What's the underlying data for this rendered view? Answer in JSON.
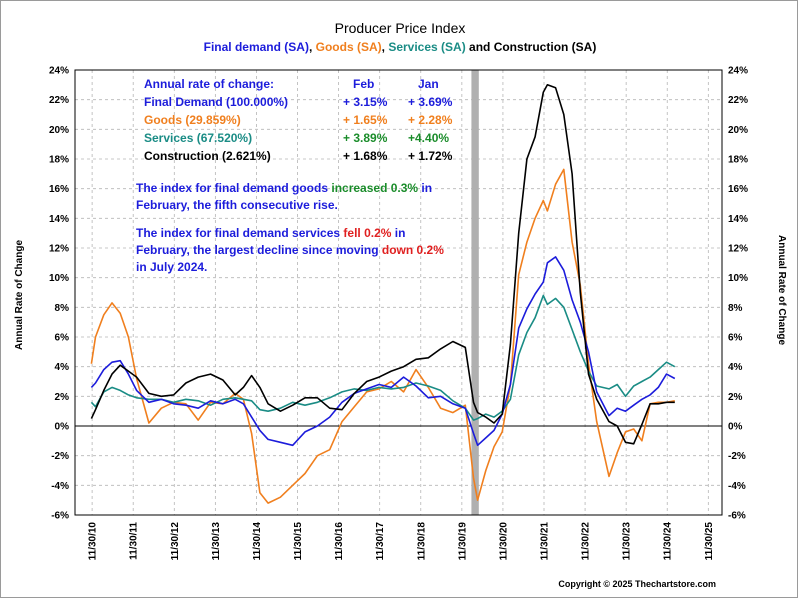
{
  "chart_data": {
    "type": "line",
    "title": "Producer Price Index",
    "subtitle": [
      {
        "text": "Final demand (SA)",
        "color": "#1c1cdb"
      },
      {
        "text": ", ",
        "color": "#000000"
      },
      {
        "text": "Goods (SA)",
        "color": "#f07f1e"
      },
      {
        "text": ", ",
        "color": "#000000"
      },
      {
        "text": "Services (SA)",
        "color": "#1a8c85"
      },
      {
        "text": " and Construction (SA)",
        "color": "#000000"
      }
    ],
    "ylabel_left": "Annual Rate of Change",
    "ylabel_right": "Annual Rate of Change",
    "ylim": [
      -6,
      24
    ],
    "yticks": [
      -6,
      -4,
      -2,
      0,
      2,
      4,
      6,
      8,
      10,
      12,
      14,
      16,
      18,
      20,
      22,
      24
    ],
    "ytick_labels": [
      "-6%",
      "-4%",
      "-2%",
      "0%",
      "2%",
      "4%",
      "6%",
      "8%",
      "10%",
      "12%",
      "14%",
      "16%",
      "18%",
      "20%",
      "22%",
      "24%"
    ],
    "xlim": [
      2010.5,
      2026.25
    ],
    "xticks": [
      2010.917,
      2011.917,
      2012.917,
      2013.917,
      2014.917,
      2015.917,
      2016.917,
      2017.917,
      2018.917,
      2019.917,
      2020.917,
      2021.917,
      2022.917,
      2023.917,
      2024.917,
      2025.917
    ],
    "xtick_labels": [
      "11/30/10",
      "11/30/11",
      "11/30/12",
      "11/30/13",
      "11/30/14",
      "11/30/15",
      "11/30/16",
      "11/30/17",
      "11/30/18",
      "11/30/19",
      "11/30/20",
      "11/30/21",
      "11/30/22",
      "11/30/23",
      "11/30/24",
      "11/30/25"
    ],
    "recession": [
      2020.15,
      2020.33
    ],
    "grid": true,
    "series": [
      {
        "name": "Final demand (SA)",
        "color": "#1c1cdb",
        "width": 1.6,
        "x": [
          2010.9,
          2011.0,
          2011.2,
          2011.4,
          2011.6,
          2011.8,
          2012.0,
          2012.3,
          2012.6,
          2012.9,
          2013.2,
          2013.5,
          2013.8,
          2014.1,
          2014.4,
          2014.6,
          2014.8,
          2015.0,
          2015.2,
          2015.5,
          2015.8,
          2016.1,
          2016.4,
          2016.7,
          2017.0,
          2017.3,
          2017.6,
          2017.9,
          2018.2,
          2018.5,
          2018.8,
          2019.1,
          2019.4,
          2019.7,
          2020.0,
          2020.2,
          2020.3,
          2020.5,
          2020.7,
          2020.9,
          2021.1,
          2021.3,
          2021.5,
          2021.7,
          2021.9,
          2022.0,
          2022.2,
          2022.4,
          2022.6,
          2022.8,
          2023.0,
          2023.2,
          2023.5,
          2023.7,
          2023.9,
          2024.1,
          2024.3,
          2024.5,
          2024.7,
          2024.9,
          2025.1
        ],
        "y": [
          2.6,
          2.9,
          3.8,
          4.3,
          4.4,
          3.5,
          2.4,
          1.6,
          1.8,
          1.5,
          1.4,
          1.2,
          1.7,
          1.5,
          1.8,
          1.5,
          0.6,
          -0.3,
          -0.9,
          -1.1,
          -1.3,
          -0.4,
          0.0,
          0.6,
          1.6,
          2.2,
          2.5,
          2.8,
          2.6,
          3.3,
          2.7,
          1.9,
          2.0,
          1.5,
          1.2,
          -0.5,
          -1.3,
          -0.8,
          -0.3,
          0.8,
          2.8,
          6.6,
          7.9,
          8.9,
          9.7,
          11.0,
          11.4,
          10.5,
          8.5,
          7.0,
          5.0,
          2.3,
          0.7,
          1.2,
          1.0,
          1.4,
          1.8,
          2.1,
          2.6,
          3.5,
          3.2
        ]
      },
      {
        "name": "Goods (SA)",
        "color": "#f07f1e",
        "width": 1.6,
        "x": [
          2010.9,
          2011.0,
          2011.2,
          2011.4,
          2011.6,
          2011.8,
          2012.0,
          2012.3,
          2012.6,
          2012.9,
          2013.2,
          2013.5,
          2013.8,
          2014.1,
          2014.4,
          2014.6,
          2014.8,
          2015.0,
          2015.2,
          2015.5,
          2015.8,
          2016.1,
          2016.4,
          2016.7,
          2017.0,
          2017.3,
          2017.6,
          2017.9,
          2018.2,
          2018.5,
          2018.8,
          2019.1,
          2019.4,
          2019.7,
          2020.0,
          2020.2,
          2020.3,
          2020.5,
          2020.7,
          2020.9,
          2021.1,
          2021.3,
          2021.5,
          2021.7,
          2021.9,
          2022.0,
          2022.2,
          2022.4,
          2022.6,
          2022.8,
          2023.0,
          2023.2,
          2023.5,
          2023.7,
          2023.9,
          2024.1,
          2024.3,
          2024.5,
          2024.7,
          2024.9,
          2025.1
        ],
        "y": [
          4.2,
          6.0,
          7.5,
          8.3,
          7.6,
          6.0,
          3.2,
          0.2,
          1.2,
          1.6,
          1.5,
          0.4,
          1.6,
          1.5,
          2.2,
          1.8,
          -0.5,
          -4.5,
          -5.2,
          -4.8,
          -4.0,
          -3.2,
          -2.0,
          -1.6,
          0.3,
          1.3,
          2.3,
          2.5,
          3.0,
          2.3,
          3.8,
          2.6,
          1.2,
          0.9,
          1.4,
          -3.5,
          -5.0,
          -3.0,
          -1.4,
          -0.4,
          2.8,
          10.2,
          12.4,
          14.0,
          15.2,
          14.5,
          16.3,
          17.3,
          12.4,
          9.5,
          4.2,
          0.3,
          -3.4,
          -1.8,
          -0.4,
          -0.2,
          -1.0,
          1.5,
          1.6,
          1.6,
          1.7
        ]
      },
      {
        "name": "Services (SA)",
        "color": "#1a8c85",
        "width": 1.6,
        "x": [
          2010.9,
          2011.0,
          2011.2,
          2011.4,
          2011.6,
          2011.8,
          2012.0,
          2012.3,
          2012.6,
          2012.9,
          2013.2,
          2013.5,
          2013.8,
          2014.1,
          2014.4,
          2014.6,
          2014.8,
          2015.0,
          2015.2,
          2015.5,
          2015.8,
          2016.1,
          2016.4,
          2016.7,
          2017.0,
          2017.3,
          2017.6,
          2017.9,
          2018.2,
          2018.5,
          2018.8,
          2019.1,
          2019.4,
          2019.7,
          2020.0,
          2020.2,
          2020.3,
          2020.5,
          2020.7,
          2020.9,
          2021.1,
          2021.3,
          2021.5,
          2021.7,
          2021.9,
          2022.0,
          2022.2,
          2022.4,
          2022.6,
          2022.8,
          2023.0,
          2023.2,
          2023.5,
          2023.7,
          2023.9,
          2024.1,
          2024.3,
          2024.5,
          2024.7,
          2024.9,
          2025.1
        ],
        "y": [
          1.6,
          1.3,
          2.3,
          2.6,
          2.4,
          2.1,
          1.9,
          1.8,
          1.8,
          1.6,
          1.8,
          1.7,
          1.4,
          1.8,
          1.9,
          1.8,
          1.7,
          1.1,
          1.0,
          1.2,
          1.6,
          1.4,
          1.6,
          1.9,
          2.3,
          2.5,
          2.4,
          2.6,
          2.5,
          2.6,
          2.9,
          2.7,
          2.4,
          1.7,
          1.2,
          0.4,
          0.5,
          0.8,
          0.6,
          1.0,
          1.8,
          4.8,
          6.3,
          7.3,
          8.8,
          8.2,
          8.6,
          8.0,
          6.5,
          5.0,
          3.7,
          2.7,
          2.5,
          2.8,
          2.0,
          2.7,
          3.0,
          3.3,
          3.8,
          4.3,
          4.0
        ]
      },
      {
        "name": "Construction (SA)",
        "color": "#000000",
        "width": 1.6,
        "x": [
          2010.9,
          2011.0,
          2011.2,
          2011.4,
          2011.6,
          2011.8,
          2012.0,
          2012.3,
          2012.6,
          2012.9,
          2013.2,
          2013.5,
          2013.8,
          2014.1,
          2014.4,
          2014.6,
          2014.8,
          2015.0,
          2015.2,
          2015.5,
          2015.8,
          2016.1,
          2016.4,
          2016.7,
          2017.0,
          2017.3,
          2017.6,
          2017.9,
          2018.2,
          2018.5,
          2018.8,
          2019.1,
          2019.4,
          2019.7,
          2020.0,
          2020.2,
          2020.3,
          2020.5,
          2020.7,
          2020.9,
          2021.1,
          2021.3,
          2021.5,
          2021.7,
          2021.9,
          2022.0,
          2022.2,
          2022.4,
          2022.6,
          2022.8,
          2023.0,
          2023.2,
          2023.5,
          2023.7,
          2023.9,
          2024.1,
          2024.3,
          2024.5,
          2024.7,
          2024.9,
          2025.1
        ],
        "y": [
          0.5,
          1.1,
          2.4,
          3.5,
          4.1,
          3.7,
          3.3,
          2.2,
          2.0,
          2.1,
          2.9,
          3.3,
          3.5,
          3.1,
          2.1,
          2.6,
          3.4,
          2.6,
          1.5,
          1.0,
          1.4,
          1.9,
          1.9,
          1.2,
          1.1,
          2.2,
          3.0,
          3.3,
          3.7,
          4.0,
          4.5,
          4.6,
          5.2,
          5.7,
          5.3,
          1.6,
          0.9,
          0.6,
          0.2,
          0.8,
          5.5,
          13.0,
          18.0,
          19.5,
          22.5,
          23.0,
          22.8,
          21.0,
          17.0,
          9.0,
          3.5,
          1.8,
          0.3,
          0.0,
          -1.1,
          -1.2,
          0.1,
          1.5,
          1.5,
          1.6,
          1.6
        ]
      }
    ],
    "rate_table": {
      "header": [
        "Annual rate of change:",
        "Feb",
        "Jan"
      ],
      "rows": [
        {
          "label": "Final Demand (100.000%)",
          "feb": "+ 3.15%",
          "jan": "+ 3.69%",
          "color": "#1c1cdb"
        },
        {
          "label": "Goods (29.859%)",
          "feb": "+ 1.65%",
          "jan": "+ 2.28%",
          "color": "#f07f1e"
        },
        {
          "label": "Services (67.520%)",
          "feb": "+ 3.89%",
          "jan": "+4.40%",
          "color": "#1a8c85",
          "feb_color": "#1a8c2a",
          "jan_color": "#1a8c2a"
        },
        {
          "label": "Construction (2.621%)",
          "feb": "+ 1.68%",
          "jan": "+ 1.72%",
          "color": "#000000"
        }
      ]
    },
    "annotations": [
      {
        "lines": [
          [
            {
              "t": "The index for final demand goods ",
              "c": "#1c1cdb"
            },
            {
              "t": "increased 0.3%",
              "c": "#1a8c2a"
            },
            {
              "t": " in",
              "c": "#1c1cdb"
            }
          ],
          [
            {
              "t": "February, the fifth consecutive rise.",
              "c": "#1c1cdb"
            }
          ]
        ]
      },
      {
        "lines": [
          [
            {
              "t": "The index for final demand services ",
              "c": "#1c1cdb"
            },
            {
              "t": "fell 0.2%",
              "c": "#e02020"
            },
            {
              "t": " in",
              "c": "#1c1cdb"
            }
          ],
          [
            {
              "t": "February, the largest decline since moving ",
              "c": "#1c1cdb"
            },
            {
              "t": "down 0.2%",
              "c": "#e02020"
            }
          ],
          [
            {
              "t": "in July 2024.",
              "c": "#1c1cdb"
            }
          ]
        ]
      }
    ],
    "copyright": "Copyright © 2025 Thechartstore.com"
  }
}
